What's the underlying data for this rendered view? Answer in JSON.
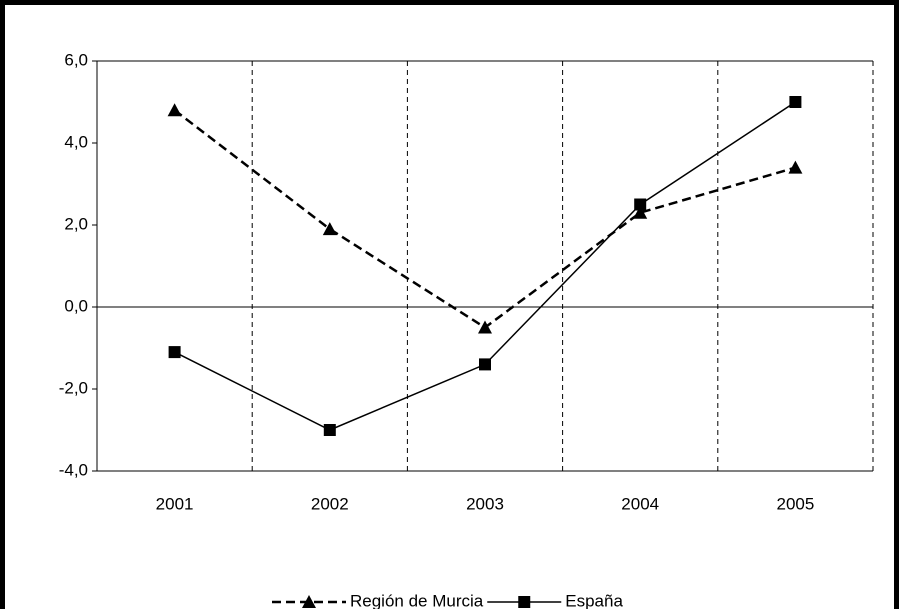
{
  "chart_data": {
    "type": "line",
    "categories": [
      "2001",
      "2002",
      "2003",
      "2004",
      "2005"
    ],
    "series": [
      {
        "name": "Región de Murcia",
        "color": "#000000",
        "dash": true,
        "marker": "triangle",
        "values": [
          4.8,
          1.9,
          -0.5,
          2.3,
          3.4
        ]
      },
      {
        "name": "España",
        "color": "#000000",
        "dash": false,
        "marker": "square",
        "values": [
          -1.1,
          -3.0,
          -1.4,
          2.5,
          5.0
        ]
      }
    ],
    "ylim": [
      -4,
      6
    ],
    "yticks": [
      {
        "value": -4,
        "label": "-4,0"
      },
      {
        "value": -2,
        "label": "-2,0"
      },
      {
        "value": 0,
        "label": "0,0"
      },
      {
        "value": 2,
        "label": "2,0"
      },
      {
        "value": 4,
        "label": "4,0"
      },
      {
        "value": 6,
        "label": "6,0"
      }
    ],
    "legend": "bottom"
  }
}
